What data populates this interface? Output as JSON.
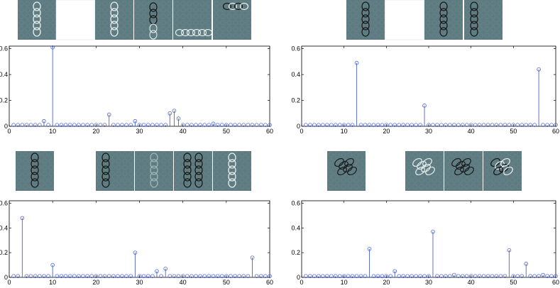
{
  "chart_data": [
    {
      "type": "stem",
      "panel": "top-left",
      "xlim": [
        0,
        60
      ],
      "ylim": [
        0,
        0.62
      ],
      "xticks": [
        "0",
        "10",
        "20",
        "30",
        "40",
        "50",
        "60"
      ],
      "yticks": [
        "0",
        "0.2",
        "0.4",
        "0.6"
      ],
      "baseline": 0.01,
      "points": [
        [
          8,
          0.04
        ],
        [
          10,
          0.61
        ],
        [
          23,
          0.09
        ],
        [
          29,
          0.04
        ],
        [
          37,
          0.1
        ],
        [
          38,
          0.12
        ],
        [
          39,
          0.06
        ],
        [
          47,
          0.02
        ]
      ],
      "thumbnails": [
        {
          "pattern": "vertical-chain",
          "style": "light"
        },
        {
          "pattern": "blank",
          "style": "white"
        },
        {
          "pattern": "vertical-chain",
          "style": "light"
        },
        {
          "pattern": "vertical-chain-top",
          "style": "dark"
        },
        {
          "pattern": "horizontal-chain-bottom",
          "style": "light"
        },
        {
          "pattern": "horizontal-chain-top",
          "style": "mixed"
        }
      ]
    },
    {
      "type": "stem",
      "panel": "top-right",
      "xlim": [
        0,
        60
      ],
      "ylim": [
        0,
        0.62
      ],
      "xticks": [
        "0",
        "10",
        "20",
        "30",
        "40",
        "50",
        "60"
      ],
      "yticks": [
        "0",
        "0.2",
        "0.4",
        "0.6"
      ],
      "baseline": 0.01,
      "points": [
        [
          13,
          0.49
        ],
        [
          29,
          0.16
        ],
        [
          56,
          0.44
        ]
      ],
      "thumbnails": [
        {
          "pattern": "vertical-chain",
          "style": "dark"
        },
        {
          "pattern": "blank",
          "style": "white"
        },
        {
          "pattern": "vertical-chain",
          "style": "dark"
        },
        {
          "pattern": "vertical-chain-left",
          "style": "dark"
        }
      ]
    },
    {
      "type": "stem",
      "panel": "bottom-left",
      "xlim": [
        0,
        60
      ],
      "ylim": [
        0,
        0.62
      ],
      "xticks": [
        "0",
        "10",
        "20",
        "30",
        "40",
        "50",
        "60"
      ],
      "yticks": [
        "0",
        "0.2",
        "0.4",
        "0.6"
      ],
      "baseline": 0.01,
      "points": [
        [
          3,
          0.48
        ],
        [
          10,
          0.1
        ],
        [
          29,
          0.2
        ],
        [
          34,
          0.05
        ],
        [
          36,
          0.07
        ],
        [
          56,
          0.16
        ]
      ],
      "thumbnails": [
        {
          "pattern": "vertical-chain",
          "style": "dark"
        },
        {
          "pattern": "vertical-chain-left",
          "style": "dark"
        },
        {
          "pattern": "vertical-chain",
          "style": "faint"
        },
        {
          "pattern": "double-chain",
          "style": "dark"
        },
        {
          "pattern": "vertical-chain",
          "style": "light"
        }
      ]
    },
    {
      "type": "stem",
      "panel": "bottom-right",
      "xlim": [
        0,
        60
      ],
      "ylim": [
        0,
        0.62
      ],
      "xticks": [
        "0",
        "10",
        "20",
        "30",
        "40",
        "50",
        "60"
      ],
      "yticks": [
        "0",
        "0.2",
        "0.4",
        "0.6"
      ],
      "baseline": 0.01,
      "points": [
        [
          16,
          0.23
        ],
        [
          22,
          0.05
        ],
        [
          31,
          0.37
        ],
        [
          36,
          0.02
        ],
        [
          49,
          0.22
        ],
        [
          53,
          0.11
        ],
        [
          57,
          0.02
        ]
      ],
      "thumbnails": [
        {
          "pattern": "diagonal-cluster",
          "style": "dark"
        },
        {
          "pattern": "diagonal-cluster",
          "style": "light"
        },
        {
          "pattern": "diagonal-cluster",
          "style": "dark"
        },
        {
          "pattern": "diagonal-cluster",
          "style": "mixed"
        }
      ]
    }
  ],
  "colors": {
    "stem": "#4b63d6",
    "marker": "#4b63d6",
    "thumb_bg": "#5d7b80",
    "axis": "#000000"
  }
}
